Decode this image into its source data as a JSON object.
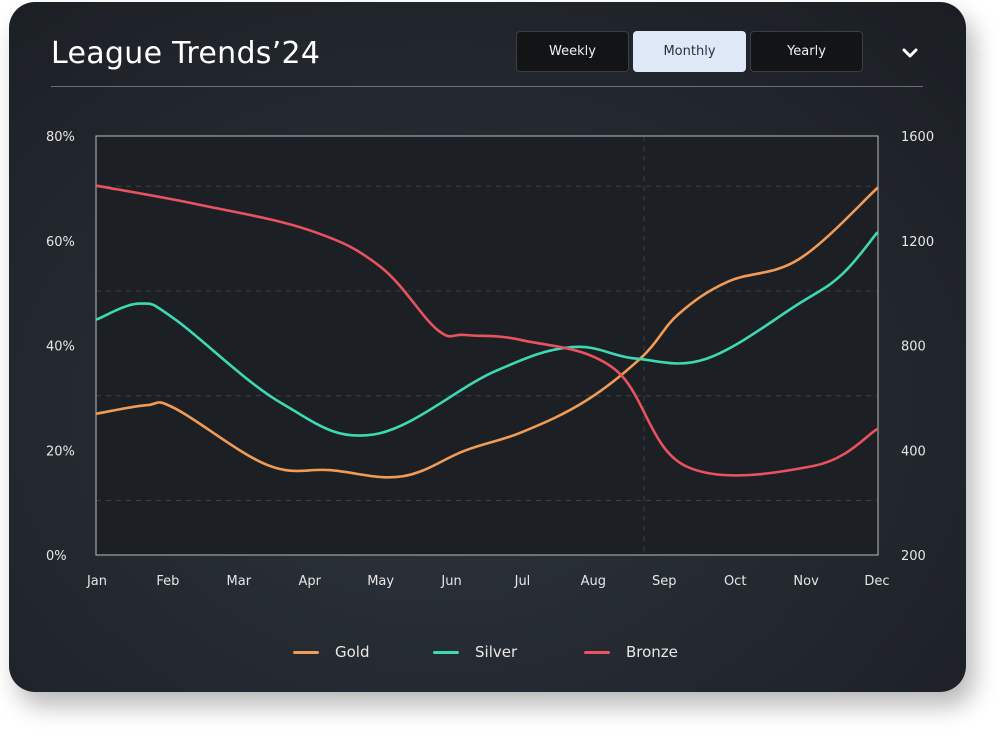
{
  "title": "League Trends’24",
  "periods": [
    {
      "label": "Weekly",
      "active": false
    },
    {
      "label": "Monthly",
      "active": true
    },
    {
      "label": "Yearly",
      "active": false
    }
  ],
  "chart_data": {
    "type": "line",
    "categories": [
      "Jan",
      "Feb",
      "Mar",
      "Apr",
      "May",
      "Jun",
      "Jul",
      "Aug",
      "Sep",
      "Oct",
      "Nov",
      "Dec"
    ],
    "y_left": {
      "min": 0,
      "max": 80,
      "ticks": [
        0,
        20,
        40,
        60,
        80
      ],
      "tick_labels": [
        "0%",
        "20%",
        "40%",
        "60%",
        "80%"
      ]
    },
    "y_right": {
      "min": 200,
      "max": 1600,
      "ticks": [
        200,
        400,
        800,
        1200,
        1600
      ],
      "tick_labels": [
        "200",
        "400",
        "800",
        "1200",
        "1600"
      ]
    },
    "grid": true,
    "legend_position": "bottom",
    "series": [
      {
        "name": "Gold",
        "color": "#f39b55",
        "points": [
          [
            0,
            27.0
          ],
          [
            0.7,
            28.6
          ],
          [
            1.1,
            28.0
          ],
          [
            2.4,
            17.2
          ],
          [
            3.3,
            16.2
          ],
          [
            4.3,
            15.0
          ],
          [
            5.2,
            20.0
          ],
          [
            6.0,
            23.5
          ],
          [
            6.9,
            29.5
          ],
          [
            7.7,
            38.0
          ],
          [
            8.2,
            46.0
          ],
          [
            8.9,
            52.2
          ],
          [
            9.9,
            56.5
          ],
          [
            11.0,
            70.0
          ]
        ]
      },
      {
        "name": "Silver",
        "color": "#3ed8b2",
        "points": [
          [
            0,
            45.0
          ],
          [
            0.6,
            48.0
          ],
          [
            1.1,
            45.0
          ],
          [
            2.6,
            29.0
          ],
          [
            3.9,
            23.0
          ],
          [
            5.6,
            35.0
          ],
          [
            6.7,
            39.7
          ],
          [
            7.6,
            37.5
          ],
          [
            8.6,
            37.5
          ],
          [
            9.9,
            48.0
          ],
          [
            10.5,
            53.5
          ],
          [
            11.0,
            61.5
          ]
        ]
      },
      {
        "name": "Bronze",
        "color": "#e9525e",
        "points": [
          [
            0,
            70.5
          ],
          [
            1.4,
            67.0
          ],
          [
            3.0,
            62.0
          ],
          [
            4.0,
            55.0
          ],
          [
            4.8,
            43.0
          ],
          [
            5.2,
            42.0
          ],
          [
            6.0,
            41.0
          ],
          [
            7.3,
            35.5
          ],
          [
            8.3,
            17.0
          ],
          [
            10.1,
            17.0
          ],
          [
            11.0,
            24.0
          ]
        ]
      }
    ]
  }
}
